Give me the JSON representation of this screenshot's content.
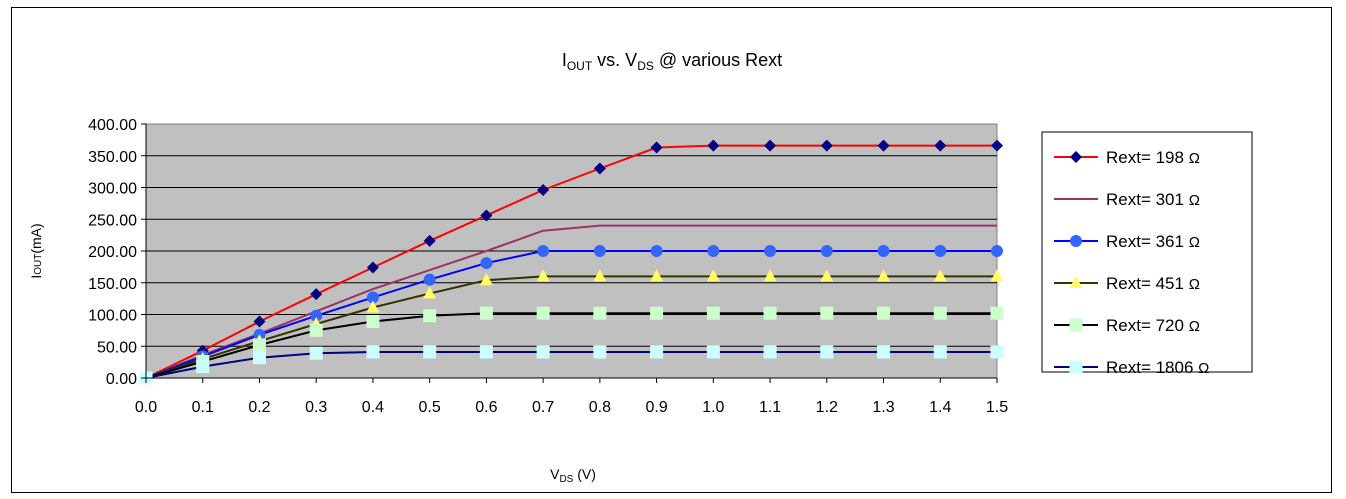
{
  "chart_data": {
    "type": "line",
    "title": {
      "main_a": "I",
      "main_a_sub": "OUT",
      "main_b": " vs. V",
      "main_b_sub": "DS",
      "main_c": " @ various Rext"
    },
    "ylabel": {
      "main": "I",
      "sub": "OUT",
      "rest": "(mA)"
    },
    "xlabel": {
      "main": "V",
      "sub": "DS",
      "rest": " (V)"
    },
    "x": [
      0.0,
      0.1,
      0.2,
      0.3,
      0.4,
      0.5,
      0.6,
      0.7,
      0.8,
      0.9,
      1.0,
      1.1,
      1.2,
      1.3,
      1.4,
      1.5
    ],
    "x_tick_labels": [
      "0.0",
      "0.1",
      "0.2",
      "0.3",
      "0.4",
      "0.5",
      "0.6",
      "0.7",
      "0.8",
      "0.9",
      "1.0",
      "1.1",
      "1.2",
      "1.3",
      "1.4",
      "1.5"
    ],
    "y_tick_labels": [
      "0.00",
      "50.00",
      "100.00",
      "150.00",
      "200.00",
      "250.00",
      "300.00",
      "350.00",
      "400.00"
    ],
    "xlim": [
      0.0,
      1.5
    ],
    "ylim": [
      0,
      400
    ],
    "grid": true,
    "plot_background": "#c0c0c0",
    "legend_placement": "right",
    "series": [
      {
        "name": "Rext= 198",
        "unit": "Ω",
        "color": "#ff0000",
        "marker": "diamond",
        "marker_color": "#000080",
        "values": [
          0,
          43,
          89,
          132,
          174,
          216,
          256,
          296,
          330,
          363,
          366,
          366,
          366,
          366,
          366,
          366
        ]
      },
      {
        "name": "Rext= 301",
        "unit": "Ω",
        "color": "#993366",
        "marker": "none",
        "marker_color": "#993366",
        "values": [
          0,
          36,
          70,
          105,
          140,
          170,
          200,
          232,
          240,
          240,
          240,
          240,
          240,
          240,
          240,
          240
        ]
      },
      {
        "name": "Rext= 361",
        "unit": "Ω",
        "color": "#0000ff",
        "marker": "circle",
        "marker_color": "#3366ff",
        "values": [
          0,
          34,
          68,
          98,
          127,
          155,
          181,
          200,
          200,
          200,
          200,
          200,
          200,
          200,
          200,
          200
        ]
      },
      {
        "name": "Rext= 451",
        "unit": "Ω",
        "color": "#333300",
        "marker": "triangle",
        "marker_color": "#ffff66",
        "values": [
          0,
          30,
          58,
          85,
          111,
          133,
          154,
          160,
          160,
          160,
          160,
          160,
          160,
          160,
          160,
          160
        ]
      },
      {
        "name": "Rext= 720",
        "unit": "Ω",
        "color": "#000000",
        "marker": "square",
        "marker_color": "#ccffcc",
        "values": [
          0,
          26,
          52,
          75,
          89,
          98,
          102,
          102,
          102,
          102,
          102,
          102,
          102,
          102,
          102,
          102
        ]
      },
      {
        "name": "Rext= 1806",
        "unit": "Ω",
        "color": "#000080",
        "marker": "square",
        "marker_color": "#ccffff",
        "values": [
          0,
          18,
          32,
          39,
          41,
          41,
          41,
          41,
          41,
          41,
          41,
          41,
          41,
          41,
          41,
          41
        ]
      }
    ]
  }
}
